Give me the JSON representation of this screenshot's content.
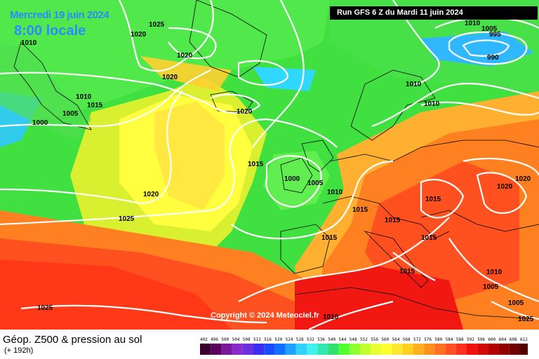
{
  "header": {
    "date": "Mercredi 19 juin 2024",
    "time": "8:00 locale",
    "run": "Run GFS 6 Z du Mardi 11 juin 2024"
  },
  "copyright": "Copyright © 2024 Meteociel.fr",
  "footer": {
    "title": "Géop. Z500 & pression au sol",
    "subtitle": "(+ 192h)"
  },
  "isobar_labels": [
    "1025",
    "1020",
    "1010",
    "1020",
    "1020",
    "1010",
    "1015",
    "1005",
    "1000",
    "1020",
    "1015",
    "1000",
    "1005",
    "1010",
    "1015",
    "1020",
    "1025",
    "1015",
    "1025",
    "1010",
    "1010",
    "1005",
    "995",
    "990",
    "1010",
    "1015",
    "1015",
    "1020",
    "1020",
    "1015",
    "1010",
    "1005",
    "1005",
    "1010",
    "1025",
    "1015"
  ],
  "legend": {
    "ticks": [
      "492",
      "496",
      "500",
      "504",
      "508",
      "512",
      "516",
      "520",
      "524",
      "528",
      "532",
      "536",
      "540",
      "544",
      "548",
      "552",
      "556",
      "560",
      "564",
      "568",
      "572",
      "576",
      "580",
      "584",
      "588",
      "592",
      "596",
      "600",
      "604",
      "608",
      "612"
    ],
    "colors": [
      "#3a0030",
      "#5c0060",
      "#7a1a9a",
      "#8a2ac8",
      "#6a30e0",
      "#3c2ef0",
      "#1a4cf8",
      "#1070ff",
      "#20a0ff",
      "#30d0ff",
      "#40f0f0",
      "#30e8b0",
      "#30e070",
      "#50ff30",
      "#90ff30",
      "#c0ff30",
      "#e8ff30",
      "#ffff30",
      "#ffe830",
      "#ffd020",
      "#ffb020",
      "#ff9020",
      "#ff7020",
      "#ff5020",
      "#ff3020",
      "#f01010",
      "#d00808",
      "#b00000",
      "#900000",
      "#700000",
      "#500000"
    ]
  }
}
